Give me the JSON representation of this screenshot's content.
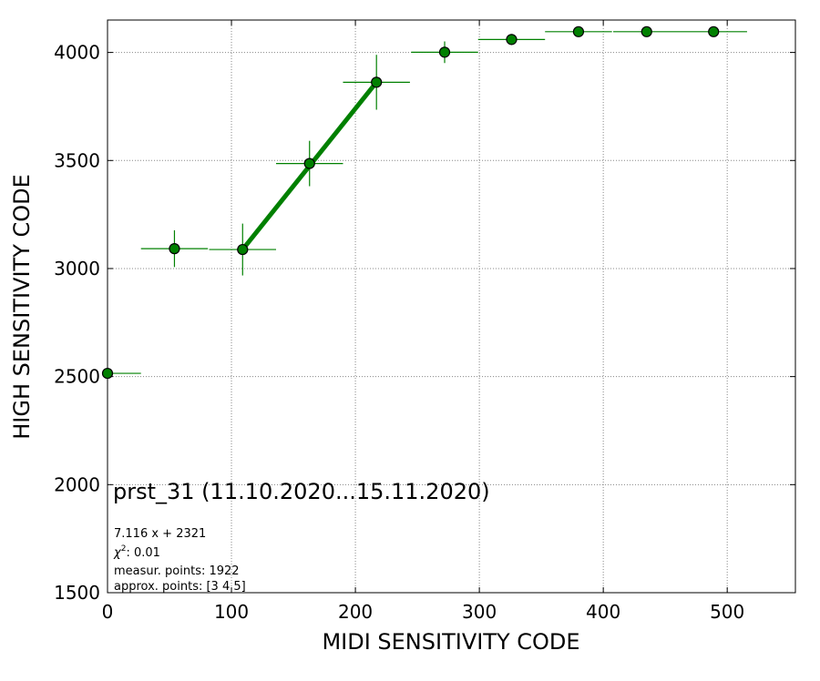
{
  "chart_data": {
    "type": "scatter",
    "xlabel": "MIDI SENSITIVITY CODE",
    "ylabel": "HIGH SENSITIVITY CODE",
    "xlim": [
      0,
      555
    ],
    "ylim": [
      1500,
      4150
    ],
    "xticks": [
      0,
      100,
      200,
      300,
      400,
      500
    ],
    "yticks": [
      1500,
      2000,
      2500,
      3000,
      3500,
      4000
    ],
    "grid": true,
    "color": "#008000",
    "points": [
      {
        "x": 0,
        "y": 2515,
        "xerr": 27,
        "yerr": 0
      },
      {
        "x": 54,
        "y": 3092,
        "xerr": 27,
        "yerr": 85
      },
      {
        "x": 109,
        "y": 3088,
        "xerr": 27,
        "yerr": 120
      },
      {
        "x": 163,
        "y": 3486,
        "xerr": 27,
        "yerr": 105
      },
      {
        "x": 217,
        "y": 3862,
        "xerr": 27,
        "yerr": 127
      },
      {
        "x": 272,
        "y": 4001,
        "xerr": 27,
        "yerr": 50
      },
      {
        "x": 326,
        "y": 4060,
        "xerr": 27,
        "yerr": 25
      },
      {
        "x": 380,
        "y": 4096,
        "xerr": 27,
        "yerr": 0
      },
      {
        "x": 435,
        "y": 4096,
        "xerr": 27,
        "yerr": 0
      },
      {
        "x": 489,
        "y": 4096,
        "xerr": 27,
        "yerr": 0
      }
    ],
    "fit": {
      "x": [
        109,
        217
      ]
    },
    "annotations": {
      "title": "prst_31 (11.10.2020...15.11.2020)",
      "fit_formula": "7.116 x + 2321",
      "chi_label": "χ",
      "chi_sup": "2",
      "chi_value": ": 0.01",
      "measur_points": "measur. points: 1922",
      "approx_points": "approx. points: [3 4 5]"
    }
  }
}
